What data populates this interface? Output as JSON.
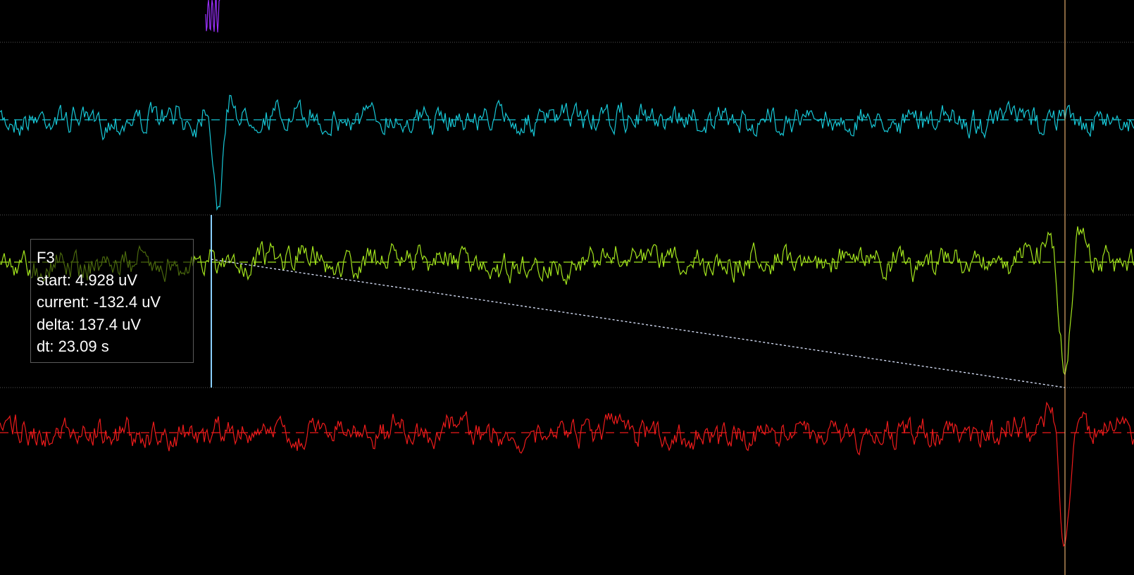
{
  "viewer": {
    "background": "#000000",
    "separator_color": "#555555",
    "channels": [
      {
        "id": "ch0",
        "color": "#9b30ff"
      },
      {
        "id": "ch1",
        "color": "#17c7d6"
      },
      {
        "id": "ch2",
        "color": "#a3e51d"
      },
      {
        "id": "ch3",
        "color": "#ee1b1b"
      }
    ],
    "cursors": {
      "start_color": "#8ad0ff",
      "current_color": "#e0a96a",
      "measure_line_color": "#dde6ff"
    }
  },
  "readout": {
    "channel": "F3",
    "start": "start: 4.928 uV",
    "current": "current: -132.4 uV",
    "delta": "delta: 137.4 uV",
    "dt": "dt: 23.09 s"
  }
}
